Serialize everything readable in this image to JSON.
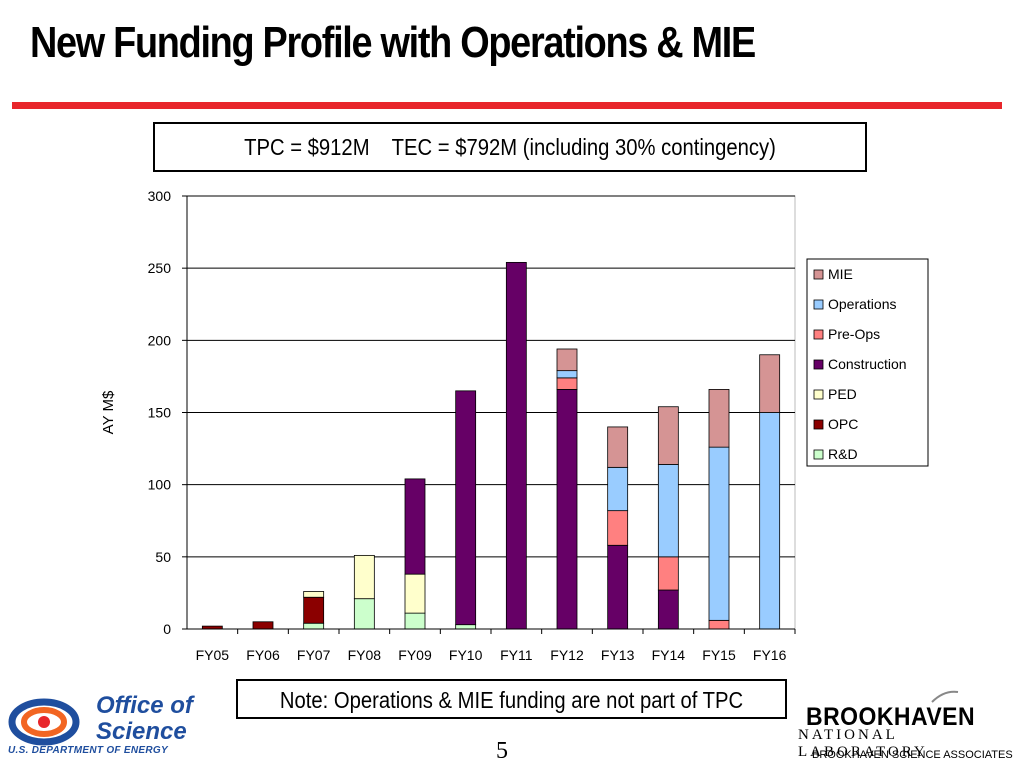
{
  "title": "New Funding Profile with Operations & MIE",
  "colors": {
    "red_rule": "#e8262b",
    "logo_blue": "#1f4e9e",
    "logo_orange": "#f26522"
  },
  "tpc_box": "TPC = $912M    TEC = $792M (including 30% contingency)",
  "note_box": "Note: Operations & MIE funding are not part of TPC",
  "page_number": "5",
  "logos": {
    "office_of_science_line1": "Office of",
    "office_of_science_line2": "Science",
    "doe": "U.S. DEPARTMENT OF ENERGY",
    "bnl_name": "BROOKHAVEN",
    "bnl_sub": "NATIONAL LABORATORY",
    "bnl_assoc": "BROOKHAVEN SCIENCE ASSOCIATES"
  },
  "chart_data": {
    "type": "bar",
    "stacked": true,
    "categories": [
      "FY05",
      "FY06",
      "FY07",
      "FY08",
      "FY09",
      "FY10",
      "FY11",
      "FY12",
      "FY13",
      "FY14",
      "FY15",
      "FY16"
    ],
    "ylabel": "AY M$",
    "xlabel": "",
    "ylim": [
      0,
      300
    ],
    "yticks": [
      0,
      50,
      100,
      150,
      200,
      250,
      300
    ],
    "grid": true,
    "legend_position": "right",
    "series": [
      {
        "name": "R&D",
        "color": "#ccffcc",
        "values": [
          0,
          0,
          4,
          21,
          11,
          3,
          0,
          0,
          0,
          0,
          0,
          0
        ]
      },
      {
        "name": "OPC",
        "color": "#8b0000",
        "values": [
          2,
          5,
          18,
          0,
          0,
          0,
          0,
          0,
          0,
          0,
          0,
          0
        ]
      },
      {
        "name": "PED",
        "color": "#ffffcc",
        "values": [
          0,
          0,
          4,
          30,
          27,
          0,
          0,
          0,
          0,
          0,
          0,
          0
        ]
      },
      {
        "name": "Construction",
        "color": "#660066",
        "values": [
          0,
          0,
          0,
          0,
          66,
          162,
          254,
          166,
          58,
          27,
          0,
          0
        ]
      },
      {
        "name": "Pre-Ops",
        "color": "#ff8080",
        "values": [
          0,
          0,
          0,
          0,
          0,
          0,
          0,
          8,
          24,
          23,
          6,
          0
        ]
      },
      {
        "name": "Operations",
        "color": "#99ccff",
        "values": [
          0,
          0,
          0,
          0,
          0,
          0,
          0,
          5,
          30,
          64,
          120,
          150
        ]
      },
      {
        "name": "MIE",
        "color": "#d59494",
        "values": [
          0,
          0,
          0,
          0,
          0,
          0,
          0,
          15,
          28,
          40,
          40,
          40
        ]
      }
    ]
  }
}
